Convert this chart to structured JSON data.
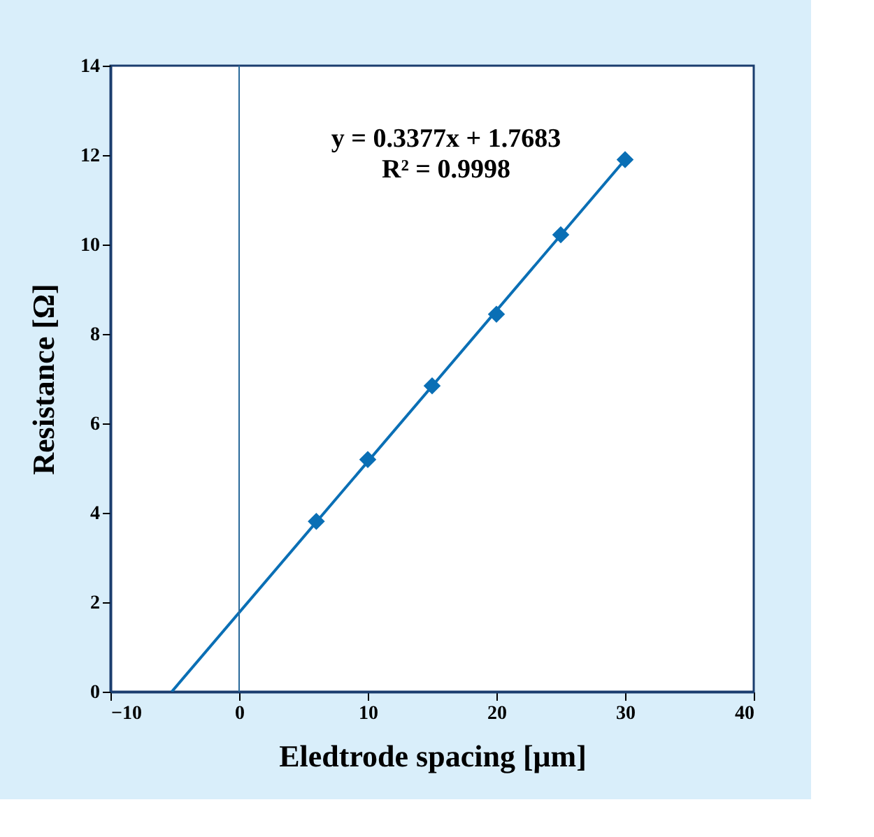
{
  "chart_data": {
    "type": "scatter",
    "xlabel": "Eledtrode spacing [μm]",
    "ylabel": "Resistance [Ω]",
    "annotations": [
      "y = 0.3377x + 1.7683",
      "R² = 0.9998"
    ],
    "xlim": [
      -10,
      40
    ],
    "xticks": [
      -10,
      0,
      10,
      20,
      30,
      40
    ],
    "ylim": [
      0,
      14
    ],
    "yticks": [
      0,
      2,
      4,
      6,
      8,
      10,
      12,
      14
    ],
    "grid": false,
    "marker": "diamond",
    "ref_lines": [
      {
        "axis": "x",
        "value": 0,
        "color": "#2a6a9a"
      }
    ],
    "series": [
      {
        "color": "#0a6fb5",
        "x": [
          6,
          10,
          15,
          20,
          25,
          30
        ],
        "values": [
          3.81,
          5.19,
          6.84,
          8.44,
          10.22,
          11.9
        ]
      },
      {
        "type": "line",
        "color": "#0a6fb5",
        "marker": "none",
        "x": [
          -5.236,
          30
        ],
        "values": [
          0,
          11.899
        ]
      }
    ]
  }
}
